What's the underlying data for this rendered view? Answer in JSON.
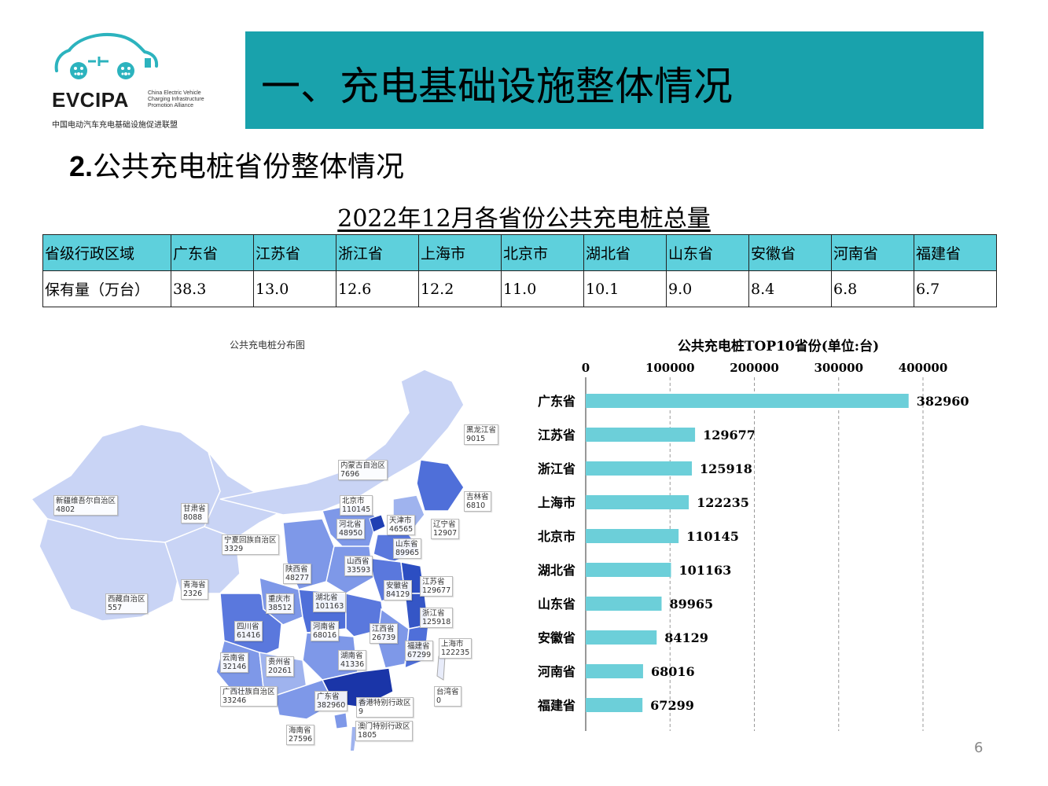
{
  "logo": {
    "word": "EVCIPA",
    "sub": "China Electric Vehicle\nCharging Infrastructure\nPromotion Alliance",
    "cn": "中国电动汽车充电基础设施促进联盟",
    "color": "#2cb3be"
  },
  "banner": {
    "title": "一、充电基础设施整体情况",
    "color": "#19a2ac"
  },
  "section": {
    "number": "2.",
    "title": "公共充电桩省份整体情况"
  },
  "table": {
    "title": "2022年12月各省份公共充电桩总量",
    "header_color": "#5ed0dc",
    "row_labels": [
      "省级行政区域",
      "保有量（万台）"
    ],
    "provinces": [
      "广东省",
      "江苏省",
      "浙江省",
      "上海市",
      "北京市",
      "湖北省",
      "山东省",
      "安徽省",
      "河南省",
      "福建省"
    ],
    "values": [
      "38.3",
      "13.0",
      "12.6",
      "12.2",
      "11.0",
      "10.1",
      "9.0",
      "8.4",
      "6.8",
      "6.7"
    ]
  },
  "map": {
    "title": "公共充电桩分布图",
    "labels": [
      {
        "name": "黑龙江省",
        "value": "9015"
      },
      {
        "name": "内蒙古自治区",
        "value": "7696"
      },
      {
        "name": "吉林省",
        "value": "6810"
      },
      {
        "name": "新疆维吾尔自治区",
        "value": "4802"
      },
      {
        "name": "甘肃省",
        "value": "8088"
      },
      {
        "name": "北京市",
        "value": "110145"
      },
      {
        "name": "天津市",
        "value": "46565"
      },
      {
        "name": "辽宁省",
        "value": "12907"
      },
      {
        "name": "河北省",
        "value": "48950"
      },
      {
        "name": "宁夏回族自治区",
        "value": "3329"
      },
      {
        "name": "山东省",
        "value": "89965"
      },
      {
        "name": "陕西省",
        "value": "48277"
      },
      {
        "name": "山西省",
        "value": "33593"
      },
      {
        "name": "青海省",
        "value": "2326"
      },
      {
        "name": "安徽省",
        "value": "84129"
      },
      {
        "name": "江苏省",
        "value": "129677"
      },
      {
        "name": "西藏自治区",
        "value": "557"
      },
      {
        "name": "重庆市",
        "value": "38512"
      },
      {
        "name": "湖北省",
        "value": "101163"
      },
      {
        "name": "浙江省",
        "value": "125918"
      },
      {
        "name": "四川省",
        "value": "61416"
      },
      {
        "name": "河南省",
        "value": "68016"
      },
      {
        "name": "江西省",
        "value": "26739"
      },
      {
        "name": "上海市",
        "value": "122235"
      },
      {
        "name": "福建省",
        "value": "67299"
      },
      {
        "name": "云南省",
        "value": "32146"
      },
      {
        "name": "贵州省",
        "value": "20261"
      },
      {
        "name": "湖南省",
        "value": "41336"
      },
      {
        "name": "台湾省",
        "value": "0"
      },
      {
        "name": "广西壮族自治区",
        "value": "33246"
      },
      {
        "name": "广东省",
        "value": "382960"
      },
      {
        "name": "香港特别行政区",
        "value": "9"
      },
      {
        "name": "澳门特别行政区",
        "value": "1805"
      },
      {
        "name": "海南省",
        "value": "27596"
      }
    ],
    "colors": {
      "low": "#c9d4f5",
      "mid": "#6f8ee6",
      "high": "#2c4ec2",
      "top": "#1a35a8"
    }
  },
  "chart_data": {
    "type": "bar",
    "orientation": "horizontal",
    "title": "公共充电桩TOP10省份(单位:台)",
    "categories": [
      "广东省",
      "江苏省",
      "浙江省",
      "上海市",
      "北京市",
      "湖北省",
      "山东省",
      "安徽省",
      "河南省",
      "福建省"
    ],
    "values": [
      382960,
      129677,
      125918,
      122235,
      110145,
      101163,
      89965,
      84129,
      68016,
      67299
    ],
    "xlim": [
      0,
      400000
    ],
    "ticks": [
      0,
      100000,
      200000,
      300000,
      400000
    ],
    "tick_labels": [
      "0",
      "100000",
      "200000",
      "300000",
      "400000"
    ],
    "axis_position": "top",
    "grid": "vertical-dashed",
    "bar_color": "#6ccfd9",
    "legend": "none"
  },
  "page_number": "6"
}
